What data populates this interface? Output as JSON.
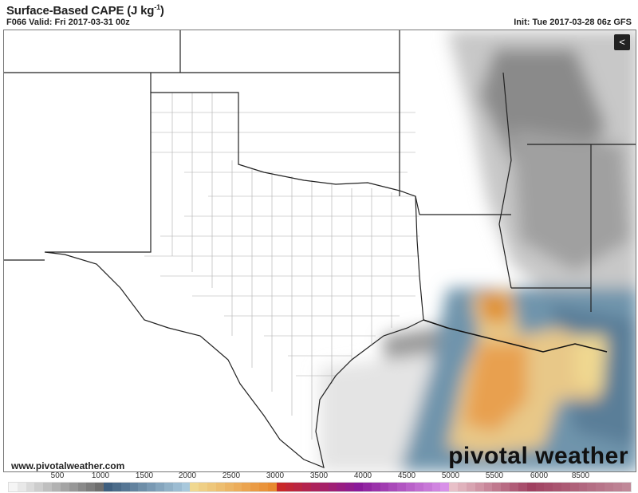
{
  "header": {
    "title": "Surface-Based CAPE (J kg",
    "title_sup": "-1",
    "title_end": ")",
    "valid": "F066 Valid: Fri 2017-03-31 00z",
    "init": "Init: Tue 2017-03-28 06z GFS"
  },
  "footer": {
    "website": "www.pivotalweather.com",
    "brand": "pivotal weather"
  },
  "share_icon": "share-icon",
  "colorbar": {
    "labels": [
      "500",
      "1000",
      "1500",
      "2000",
      "2500",
      "3000",
      "3500",
      "4000",
      "4500",
      "5000",
      "5500",
      "6000",
      "8500"
    ],
    "colors": {
      "gray_low": "#f5f5f5",
      "gray_high": "#6e6e6e",
      "blue_low": "#3f5f7f",
      "blue_high": "#a8c8dc",
      "yellow": "#f0d890",
      "orange": "#e88a30",
      "red": "#c82828",
      "purple": "#8a1a9a",
      "violet": "#d890e8",
      "pink": "#e8c0c8",
      "maroon": "#a04060",
      "mauve": "#c08898"
    }
  }
}
